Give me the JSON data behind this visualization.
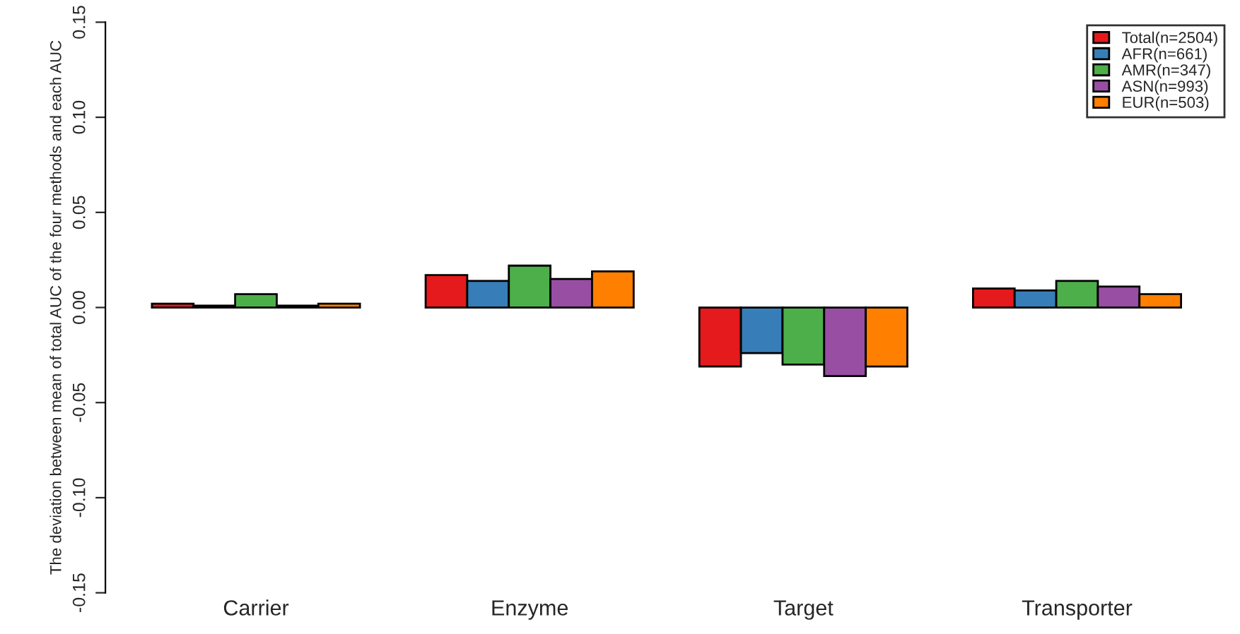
{
  "chart_data": {
    "type": "bar",
    "ylabel": "The deviation between mean of total AUC of the four methods and each AUC",
    "categories": [
      "Carrier",
      "Enzyme",
      "Target",
      "Transporter"
    ],
    "series": [
      {
        "name": "Total(n=2504)",
        "color": "#e41a1c",
        "values": [
          0.002,
          0.017,
          -0.031,
          0.01
        ]
      },
      {
        "name": "AFR(n=661)",
        "color": "#377eb8",
        "values": [
          0.001,
          0.014,
          -0.024,
          0.009
        ]
      },
      {
        "name": "AMR(n=347)",
        "color": "#4daf4a",
        "values": [
          0.007,
          0.022,
          -0.03,
          0.014
        ]
      },
      {
        "name": "ASN(n=993)",
        "color": "#984ea3",
        "values": [
          0.001,
          0.015,
          -0.036,
          0.011
        ]
      },
      {
        "name": "EUR(n=503)",
        "color": "#ff7f00",
        "values": [
          0.002,
          0.019,
          -0.031,
          0.007
        ]
      }
    ],
    "ylim": [
      -0.15,
      0.15
    ],
    "yticks": [
      {
        "value": -0.15,
        "label": "-0.15"
      },
      {
        "value": -0.1,
        "label": "-0.10"
      },
      {
        "value": -0.05,
        "label": "-0.05"
      },
      {
        "value": 0,
        "label": "0.00"
      },
      {
        "value": 0.05,
        "label": "0.05"
      },
      {
        "value": 0.1,
        "label": "0.10"
      },
      {
        "value": 0.15,
        "label": "0.15"
      }
    ],
    "legend": "top right",
    "grid": false
  }
}
